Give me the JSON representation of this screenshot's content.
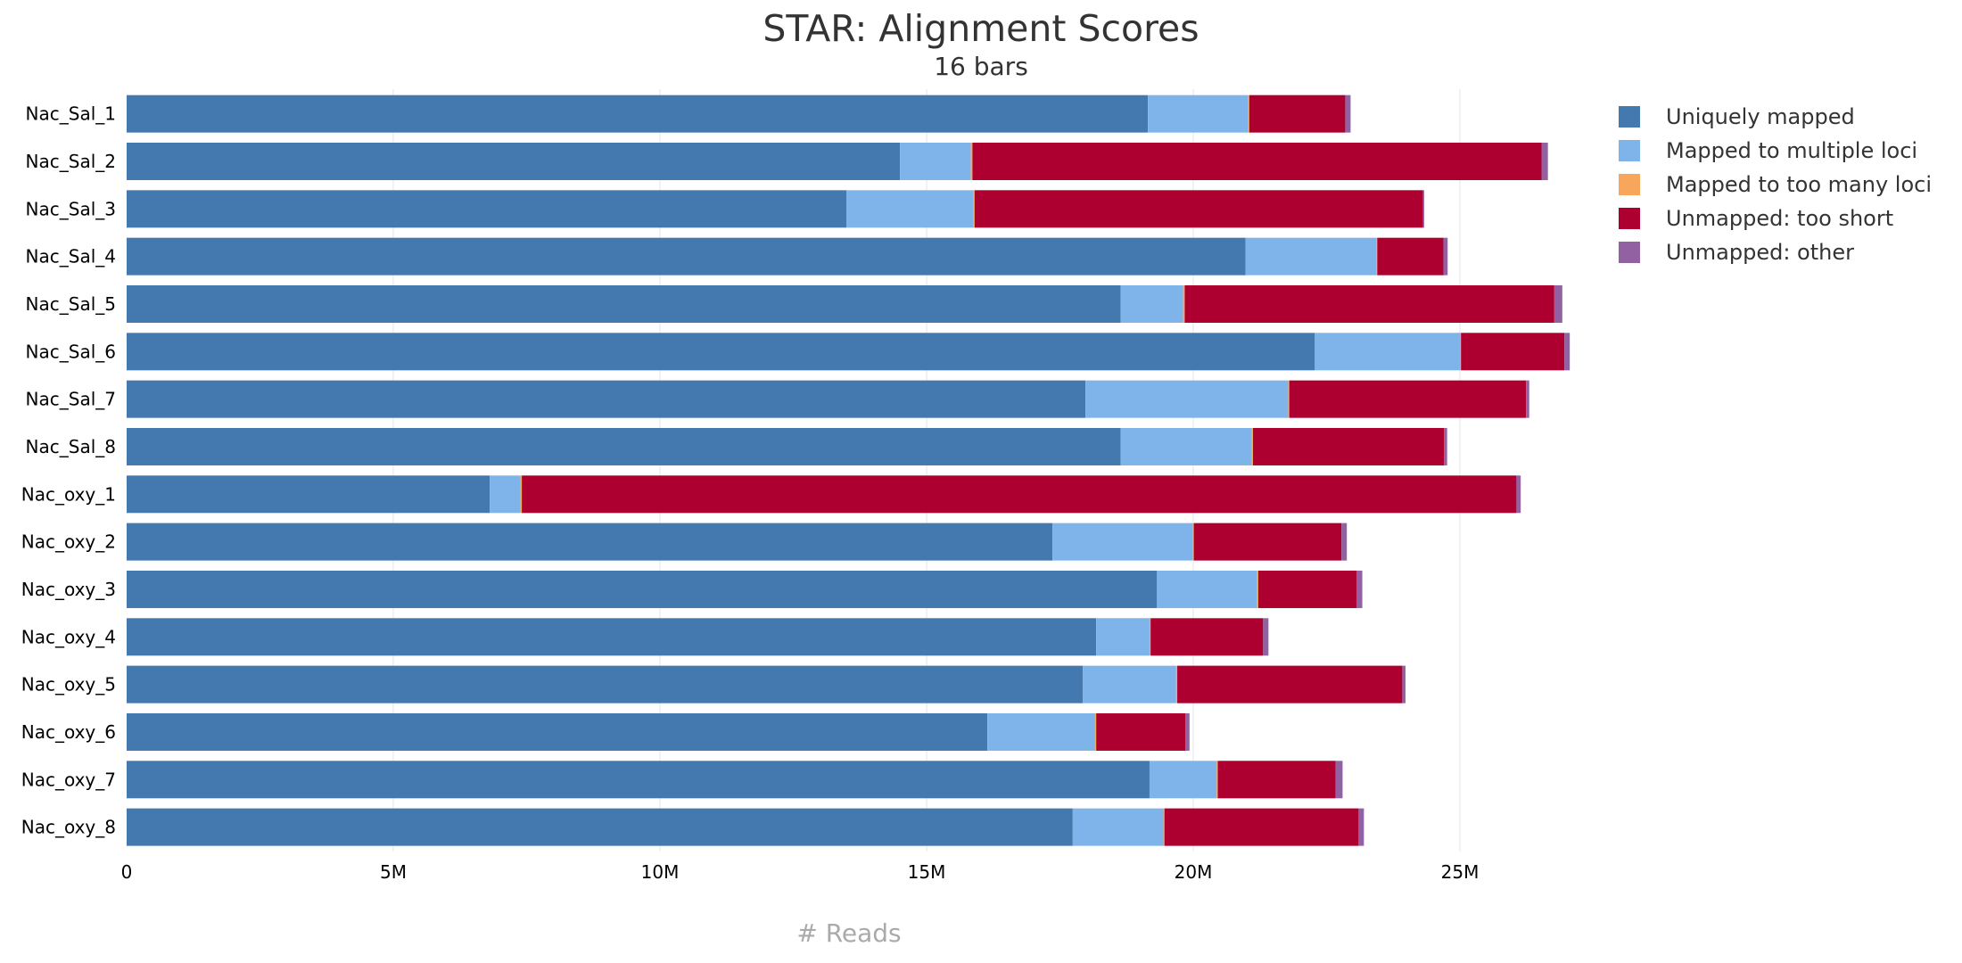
{
  "chart_data": {
    "type": "bar",
    "orientation": "horizontal",
    "stacked": true,
    "title": "STAR: Alignment Scores",
    "subtitle": "16 bars",
    "xlabel": "# Reads",
    "ylabel": "",
    "xlim": [
      0,
      30000000
    ],
    "xticks": [
      {
        "value": 0,
        "label": "0"
      },
      {
        "value": 5000000,
        "label": "5M"
      },
      {
        "value": 10000000,
        "label": "10M"
      },
      {
        "value": 15000000,
        "label": "15M"
      },
      {
        "value": 20000000,
        "label": "20M"
      },
      {
        "value": 25000000,
        "label": "25M"
      }
    ],
    "grid": true,
    "legend_position": "top-right",
    "categories": [
      "Nac_Sal_1",
      "Nac_Sal_2",
      "Nac_Sal_3",
      "Nac_Sal_4",
      "Nac_Sal_5",
      "Nac_Sal_6",
      "Nac_Sal_7",
      "Nac_Sal_8",
      "Nac_oxy_1",
      "Nac_oxy_2",
      "Nac_oxy_3",
      "Nac_oxy_4",
      "Nac_oxy_5",
      "Nac_oxy_6",
      "Nac_oxy_7",
      "Nac_oxy_8"
    ],
    "series": [
      {
        "name": "Uniquely mapped",
        "color": "#4479b0",
        "values": [
          19150000,
          14500000,
          13500000,
          20980000,
          18640000,
          22280000,
          17980000,
          18640000,
          6810000,
          17360000,
          19320000,
          18180000,
          17930000,
          16140000,
          19180000,
          17740000
        ]
      },
      {
        "name": "Mapped to multiple loci",
        "color": "#7fb4eb",
        "values": [
          1880000,
          1330000,
          2380000,
          2450000,
          1170000,
          2720000,
          3800000,
          2460000,
          580000,
          2630000,
          1880000,
          1000000,
          1750000,
          2020000,
          1260000,
          1700000
        ]
      },
      {
        "name": "Mapped to too many loci",
        "color": "#f8a65c",
        "values": [
          20000,
          30000,
          20000,
          20000,
          30000,
          20000,
          20000,
          20000,
          20000,
          20000,
          20000,
          20000,
          20000,
          20000,
          20000,
          20000
        ]
      },
      {
        "name": "Unmapped: too short",
        "color": "#ae0030",
        "values": [
          1800000,
          10670000,
          8410000,
          1240000,
          6930000,
          1940000,
          4440000,
          3580000,
          18650000,
          2770000,
          1840000,
          2110000,
          4220000,
          1670000,
          2210000,
          3640000
        ]
      },
      {
        "name": "Unmapped: other",
        "color": "#9261a1",
        "values": [
          100000,
          120000,
          20000,
          80000,
          150000,
          100000,
          60000,
          60000,
          80000,
          100000,
          110000,
          100000,
          60000,
          80000,
          130000,
          100000
        ]
      }
    ]
  }
}
